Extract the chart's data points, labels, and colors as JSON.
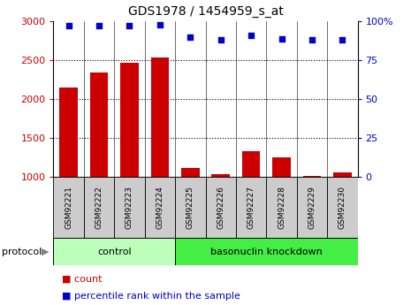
{
  "title": "GDS1978 / 1454959_s_at",
  "samples": [
    "GSM92221",
    "GSM92222",
    "GSM92223",
    "GSM92224",
    "GSM92225",
    "GSM92226",
    "GSM92227",
    "GSM92228",
    "GSM92229",
    "GSM92230"
  ],
  "counts": [
    2150,
    2340,
    2470,
    2530,
    1110,
    1040,
    1330,
    1250,
    1010,
    1060
  ],
  "percentile_ranks": [
    97,
    97,
    97,
    98,
    90,
    88,
    91,
    89,
    88,
    88
  ],
  "ylim_left": [
    1000,
    3000
  ],
  "ylim_right": [
    0,
    100
  ],
  "yticks_left": [
    1000,
    1500,
    2000,
    2500,
    3000
  ],
  "yticks_right": [
    0,
    25,
    50,
    75,
    100
  ],
  "right_tick_labels": [
    "0",
    "25",
    "50",
    "75",
    "100%"
  ],
  "bar_color": "#cc0000",
  "dot_color": "#0000cc",
  "groups": [
    {
      "label": "control",
      "n_items": 4,
      "color": "#bbffbb"
    },
    {
      "label": "basonuclin knockdown",
      "n_items": 6,
      "color": "#44ee44"
    }
  ],
  "legend_count_label": "count",
  "legend_pct_label": "percentile rank within the sample",
  "protocol_label": "protocol",
  "tick_label_color_left": "#cc0000",
  "tick_label_color_right": "#0000cc",
  "xticklabel_bg": "#cccccc",
  "grid_dotted_levels": [
    1500,
    2000,
    2500
  ]
}
